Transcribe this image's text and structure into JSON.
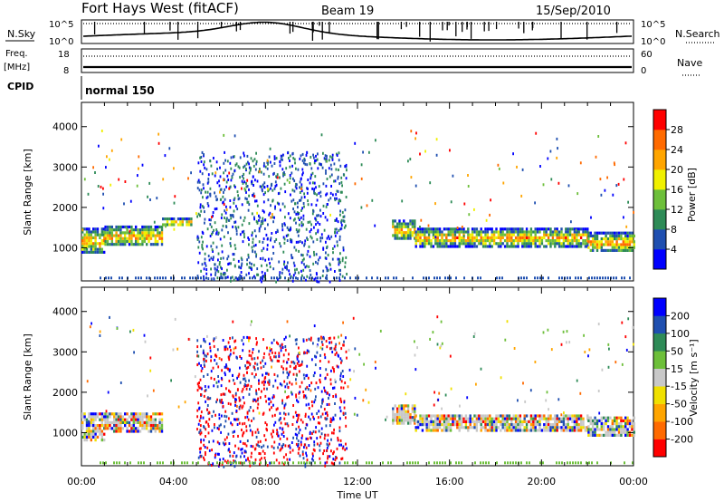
{
  "header": {
    "station": "Fort Hays West (fitACF)",
    "beam": "Beam 19",
    "date": "15/Sep/2010"
  },
  "summary_panels": {
    "nsky_label": "N.Sky",
    "nsky_ticks": [
      "10^5",
      "10^0"
    ],
    "nsearch_label": "N.Search",
    "nsearch_ticks": [
      "10^5",
      "10^0"
    ],
    "freq_label": "Freq.",
    "freq_unit": "[MHz]",
    "freq_ticks": [
      "18",
      "8"
    ],
    "nave_label": "Nave",
    "nave_ticks": [
      "60",
      "0"
    ],
    "cpid_label": "CPID",
    "cpid_value": "normal 150"
  },
  "colors": {
    "power_scale": [
      "#0000ff",
      "#1f4fb0",
      "#2e8b57",
      "#6dbf3a",
      "#f0f000",
      "#ffa500",
      "#ff6a00",
      "#ff0000"
    ],
    "velocity_scale": [
      "#ff0000",
      "#ff6a00",
      "#ffa500",
      "#f0e000",
      "#c8c8c8",
      "#6dbf3a",
      "#2e8b57",
      "#1f4fb0",
      "#0000ff"
    ]
  },
  "chart_data": [
    {
      "type": "heatmap",
      "panel": "power",
      "xlabel": "Time UT",
      "ylabel": "Slant Range [km]",
      "xlim": [
        0,
        24
      ],
      "ylim": [
        180,
        4600
      ],
      "x_ticks": [
        "00:00",
        "04:00",
        "08:00",
        "12:00",
        "16:00",
        "20:00",
        "00:00"
      ],
      "y_ticks": [
        1000,
        2000,
        3000,
        4000
      ],
      "colorbar_label": "Power [dB]",
      "colorbar_ticks": [
        "4",
        "8",
        "12",
        "16",
        "20",
        "24",
        "28"
      ],
      "colorbar_range": [
        0,
        30
      ],
      "echo_regions": [
        {
          "t0": 0.0,
          "t1": 1.0,
          "r0": 900,
          "r1": 1500
        },
        {
          "t0": 1.0,
          "t1": 3.5,
          "r0": 1050,
          "r1": 1550
        },
        {
          "t0": 3.5,
          "t1": 4.8,
          "r0": 1550,
          "r1": 1750
        },
        {
          "t0": 13.5,
          "t1": 14.5,
          "r0": 1200,
          "r1": 1700
        },
        {
          "t0": 14.5,
          "t1": 22.0,
          "r0": 1050,
          "r1": 1500
        },
        {
          "t0": 22.0,
          "t1": 24.0,
          "r0": 900,
          "r1": 1400
        }
      ],
      "scatter_region": {
        "t0": 5.0,
        "t1": 11.5,
        "r0": 180,
        "r1": 3400
      }
    },
    {
      "type": "heatmap",
      "panel": "velocity",
      "xlabel": "Time UT",
      "ylabel": "Slant Range [km]",
      "xlim": [
        0,
        24
      ],
      "ylim": [
        180,
        4600
      ],
      "x_ticks": [
        "00:00",
        "04:00",
        "08:00",
        "12:00",
        "16:00",
        "20:00",
        "00:00"
      ],
      "y_ticks": [
        1000,
        2000,
        3000,
        4000
      ],
      "colorbar_label": "Velocity [m s⁻¹]",
      "colorbar_ticks": [
        "200",
        "100",
        "50",
        "15",
        "-15",
        "-50",
        "-100",
        "-200"
      ],
      "colorbar_range": [
        -250,
        250
      ],
      "echo_regions": [
        {
          "t0": 0.0,
          "t1": 1.0,
          "r0": 850,
          "r1": 1500
        },
        {
          "t0": 1.0,
          "t1": 3.5,
          "r0": 1050,
          "r1": 1500
        },
        {
          "t0": 13.5,
          "t1": 14.5,
          "r0": 1200,
          "r1": 1700
        },
        {
          "t0": 14.5,
          "t1": 22.0,
          "r0": 1050,
          "r1": 1450
        },
        {
          "t0": 22.0,
          "t1": 24.0,
          "r0": 950,
          "r1": 1400
        }
      ],
      "scatter_region": {
        "t0": 5.0,
        "t1": 11.5,
        "r0": 180,
        "r1": 3400
      }
    }
  ]
}
